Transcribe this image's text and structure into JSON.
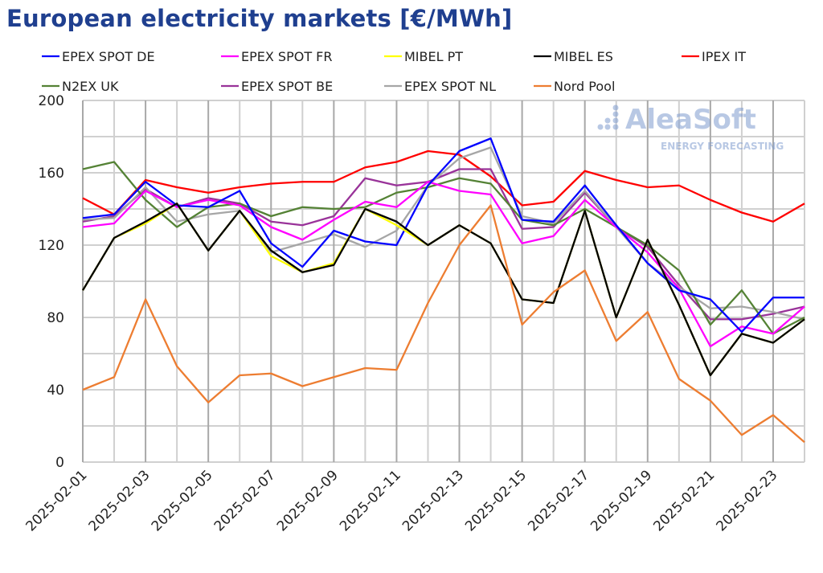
{
  "title": "European electricity markets [€/MWh]",
  "watermark": {
    "brand": "AleaSoft",
    "tagline": "ENERGY FORECASTING"
  },
  "chart_data": {
    "type": "line",
    "title": "European electricity markets [€/MWh]",
    "xlabel": "",
    "ylabel": "",
    "ylim": [
      0,
      200
    ],
    "yticks": [
      0,
      40,
      80,
      120,
      160,
      200
    ],
    "grid": true,
    "legend_position": "top",
    "x": [
      "2025-02-01",
      "2025-02-02",
      "2025-02-03",
      "2025-02-04",
      "2025-02-05",
      "2025-02-06",
      "2025-02-07",
      "2025-02-08",
      "2025-02-09",
      "2025-02-10",
      "2025-02-11",
      "2025-02-12",
      "2025-02-13",
      "2025-02-14",
      "2025-02-15",
      "2025-02-16",
      "2025-02-17",
      "2025-02-18",
      "2025-02-19",
      "2025-02-20",
      "2025-02-21",
      "2025-02-22",
      "2025-02-23",
      "2025-02-24"
    ],
    "xtick_labels": [
      "2025-02-01",
      "2025-02-03",
      "2025-02-05",
      "2025-02-07",
      "2025-02-09",
      "2025-02-11",
      "2025-02-13",
      "2025-02-15",
      "2025-02-17",
      "2025-02-19",
      "2025-02-21",
      "2025-02-23"
    ],
    "series": [
      {
        "name": "EPEX SPOT DE",
        "color": "#0000ff",
        "values": [
          135,
          137,
          155,
          142,
          141,
          150,
          121,
          108,
          128,
          122,
          120,
          153,
          172,
          179,
          134,
          133,
          153,
          131,
          110,
          95,
          90,
          72,
          91,
          91
        ]
      },
      {
        "name": "EPEX SPOT FR",
        "color": "#ff00ff",
        "values": [
          130,
          132,
          150,
          141,
          145,
          142,
          130,
          123,
          134,
          144,
          141,
          155,
          150,
          148,
          121,
          125,
          145,
          130,
          116,
          96,
          64,
          75,
          71,
          86
        ]
      },
      {
        "name": "MIBEL PT",
        "color": "#ffff00",
        "values": [
          95,
          124,
          132,
          143,
          117,
          139,
          114,
          105,
          110,
          140,
          131,
          120,
          131,
          121,
          90,
          88,
          139,
          80,
          123,
          87,
          48,
          71,
          66,
          79
        ]
      },
      {
        "name": "MIBEL ES",
        "color": "#000000",
        "values": [
          95,
          124,
          133,
          143,
          117,
          139,
          117,
          105,
          109,
          140,
          133,
          120,
          131,
          121,
          90,
          88,
          139,
          80,
          123,
          87,
          48,
          71,
          66,
          79
        ]
      },
      {
        "name": "IPEX IT",
        "color": "#ff0000",
        "values": [
          146,
          137,
          156,
          152,
          149,
          152,
          154,
          155,
          155,
          163,
          166,
          172,
          170,
          158,
          142,
          144,
          161,
          156,
          152,
          153,
          145,
          138,
          133,
          143
        ]
      },
      {
        "name": "N2EX UK",
        "color": "#548235",
        "values": [
          162,
          166,
          145,
          130,
          141,
          143,
          136,
          141,
          140,
          141,
          149,
          152,
          157,
          154,
          134,
          131,
          140,
          130,
          120,
          106,
          76,
          95,
          71,
          80
        ]
      },
      {
        "name": "EPEX SPOT BE",
        "color": "#993399",
        "values": [
          133,
          136,
          151,
          141,
          146,
          143,
          133,
          131,
          136,
          157,
          153,
          155,
          162,
          162,
          129,
          130,
          149,
          130,
          119,
          98,
          79,
          79,
          82,
          86
        ]
      },
      {
        "name": "EPEX SPOT NL",
        "color": "#a6a6a6",
        "values": [
          134,
          135,
          152,
          133,
          137,
          139,
          116,
          121,
          126,
          119,
          128,
          153,
          168,
          174,
          136,
          132,
          150,
          130,
          110,
          97,
          85,
          86,
          83,
          79
        ]
      },
      {
        "name": "Nord Pool",
        "color": "#ed7d31",
        "values": [
          40,
          47,
          90,
          53,
          33,
          48,
          49,
          42,
          47,
          52,
          51,
          88,
          120,
          142,
          76,
          94,
          106,
          67,
          83,
          46,
          34,
          15,
          26,
          11
        ]
      }
    ]
  }
}
